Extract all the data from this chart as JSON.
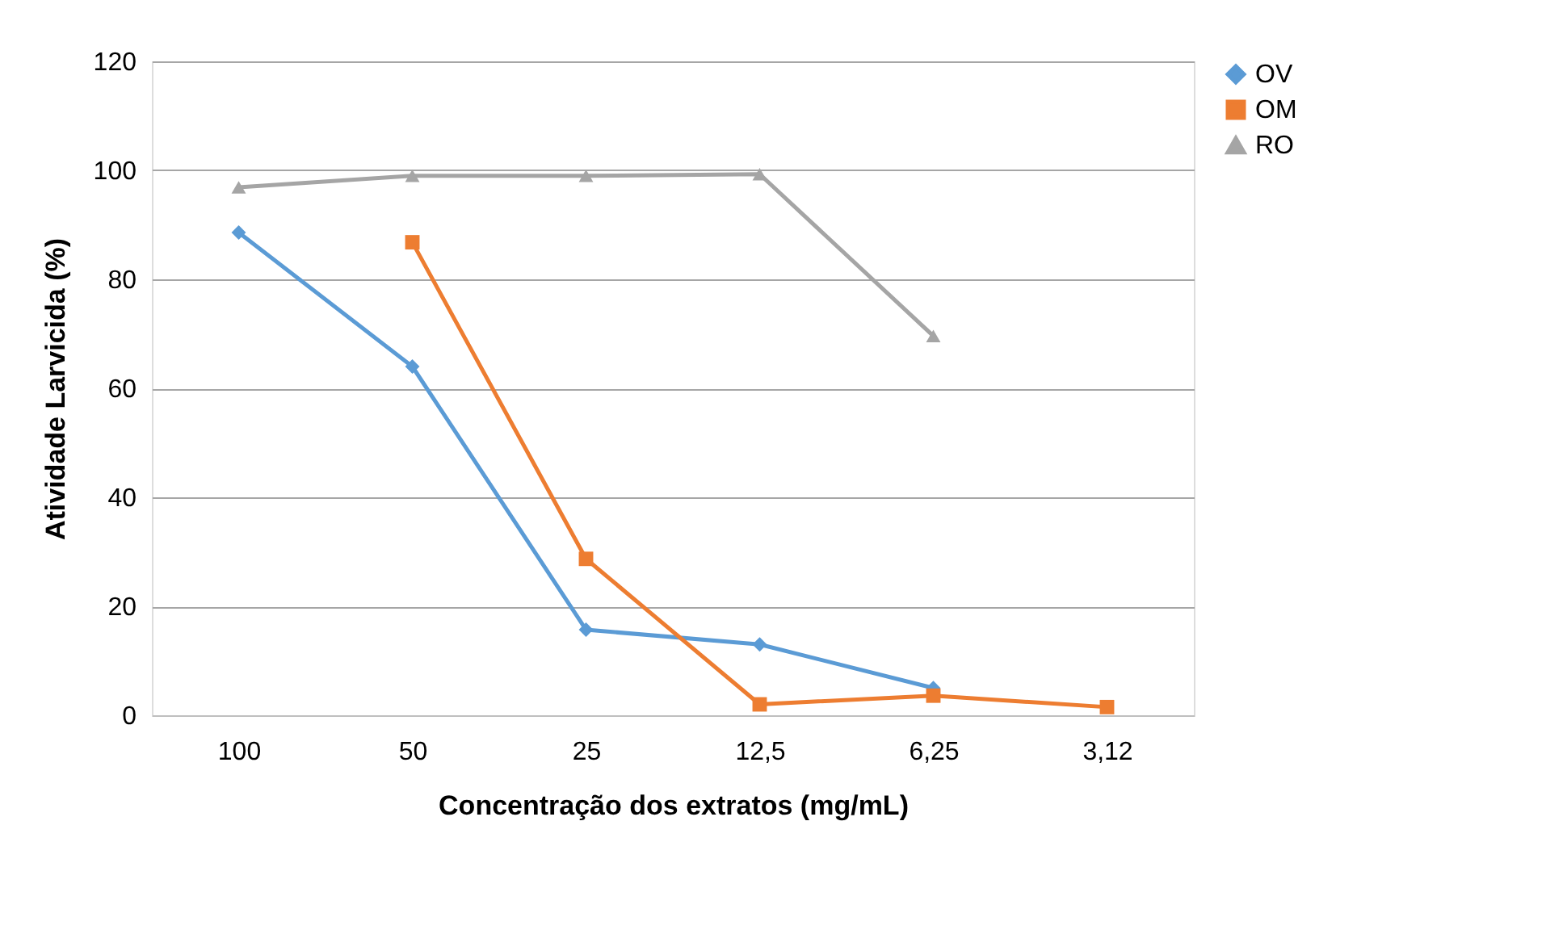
{
  "chart_data": {
    "type": "line",
    "xlabel": "Concentração dos extratos (mg/mL)",
    "ylabel": "Atividade Larvicida (%)",
    "categories": [
      "100",
      "50",
      "25",
      "12,5",
      "6,25",
      "3,12"
    ],
    "series": [
      {
        "name": "OV",
        "color": "#5b9bd5",
        "marker": "diamond",
        "values": [
          88.6,
          64,
          15.7,
          13,
          5,
          null
        ]
      },
      {
        "name": "OM",
        "color": "#ed7d31",
        "marker": "square",
        "values": [
          null,
          86.8,
          28.7,
          2,
          3.6,
          1.5
        ]
      },
      {
        "name": "RO",
        "color": "#a5a5a5",
        "marker": "triangle",
        "values": [
          96.9,
          99,
          99,
          99.3,
          69.6,
          null
        ]
      }
    ],
    "ylim": [
      0,
      120
    ],
    "yticks": [
      0,
      20,
      40,
      60,
      80,
      100,
      120
    ],
    "grid": "y",
    "legend": "right",
    "line_style": "solid"
  }
}
